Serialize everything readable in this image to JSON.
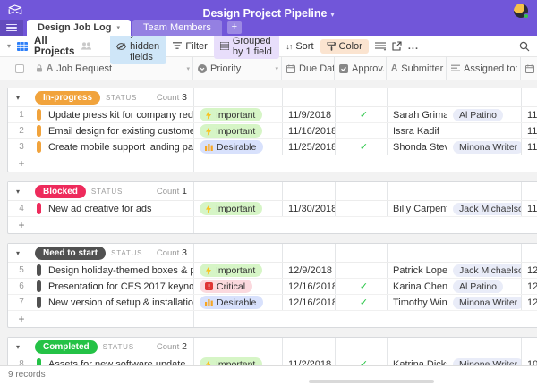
{
  "app": {
    "title": "Design Project Pipeline",
    "tabs": [
      {
        "label": "Design Job Log",
        "active": true
      },
      {
        "label": "Team Members",
        "active": false
      }
    ],
    "add_tab_label": "+"
  },
  "toolbar": {
    "view_name": "All Projects",
    "hidden_fields_label": "2 hidden fields",
    "filter_label": "Filter",
    "group_label": "Grouped by 1 field",
    "sort_label": "Sort",
    "color_label": "Color",
    "more_label": "...",
    "accents": {
      "hidden_fields_bg": "#cfe6f8",
      "group_bg": "#e8defb",
      "color_bg": "#fbe4d0"
    }
  },
  "columns": [
    {
      "label": "",
      "icon": "checkbox-icon"
    },
    {
      "label": "Job Request",
      "icon": "text-icon"
    },
    {
      "label": "Priority",
      "icon": "single-select-icon"
    },
    {
      "label": "Due Date",
      "icon": "calendar-icon"
    },
    {
      "label": "Approv...",
      "icon": "checkbox-field-icon"
    },
    {
      "label": "Submitter",
      "icon": "text-icon"
    },
    {
      "label": "Assigned to:",
      "icon": "collaborator-icon"
    },
    {
      "label": "E",
      "icon": "calendar-icon"
    }
  ],
  "priorities": {
    "Important": {
      "bg": "#d6f5c6",
      "icon": "lightning-icon"
    },
    "Desirable": {
      "bg": "#d8e1fc",
      "icon": "bar-chart-icon"
    },
    "Critical": {
      "bg": "#fbd9de",
      "icon": "alert-icon"
    }
  },
  "groups": [
    {
      "name": "In-progress",
      "color": "#f1a33c",
      "field_label": "STATUS",
      "count_label": "Count",
      "count": "3",
      "rows": [
        {
          "num": "1",
          "title": "Update press kit for company redesign",
          "priority": "Important",
          "due": "11/9/2018",
          "approved": true,
          "submitter": "Sarah Grimaldi",
          "assigned": [
            "Al Patino"
          ],
          "end": "11/7/"
        },
        {
          "num": "2",
          "title": "Email design for existing customer outreach",
          "priority": "Important",
          "due": "11/16/2018",
          "approved": false,
          "submitter": "Issra Kadif",
          "assigned": [],
          "end": "11/11"
        },
        {
          "num": "3",
          "title": "Create mobile support landing page",
          "priority": "Desirable",
          "due": "11/25/2018",
          "approved": true,
          "submitter": "Shonda Stevens",
          "assigned": [
            "Minona Writer"
          ],
          "end": "11/2"
        }
      ]
    },
    {
      "name": "Blocked",
      "color": "#ee2b5c",
      "field_label": "STATUS",
      "count_label": "Count",
      "count": "1",
      "rows": [
        {
          "num": "4",
          "title": "New ad creative for ads",
          "priority": "Important",
          "due": "11/30/2018",
          "approved": false,
          "submitter": "Billy Carpenter",
          "assigned": [
            "Jack Michaelson",
            "Jodi I"
          ],
          "end": "11/3"
        }
      ]
    },
    {
      "name": "Need to start",
      "color": "#515151",
      "field_label": "STATUS",
      "count_label": "Count",
      "count": "3",
      "rows": [
        {
          "num": "5",
          "title": "Design holiday-themed boxes & packaging",
          "priority": "Important",
          "due": "12/9/2018",
          "approved": false,
          "submitter": "Patrick Lopez",
          "assigned": [
            "Jack Michaelson",
            "Al Pa"
          ],
          "end": "12/8"
        },
        {
          "num": "6",
          "title": "Presentation for CES 2017 keynote",
          "priority": "Critical",
          "due": "12/16/2018",
          "approved": true,
          "submitter": "Karina Chen",
          "assigned": [
            "Al Patino"
          ],
          "end": "12/1"
        },
        {
          "num": "7",
          "title": "New version of setup & installation guide",
          "priority": "Desirable",
          "due": "12/16/2018",
          "approved": true,
          "submitter": "Timothy Winters",
          "assigned": [
            "Minona Writer"
          ],
          "end": "12/1"
        }
      ]
    },
    {
      "name": "Completed",
      "color": "#24c246",
      "field_label": "STATUS",
      "count_label": "Count",
      "count": "2",
      "rows": [
        {
          "num": "8",
          "title": "Assets for new software update",
          "priority": "Important",
          "due": "11/2/2018",
          "approved": true,
          "submitter": "Katrina Dickson",
          "assigned": [
            "Minona Writer"
          ],
          "end": "10/2"
        }
      ]
    }
  ],
  "footer": {
    "records": "9 records"
  }
}
